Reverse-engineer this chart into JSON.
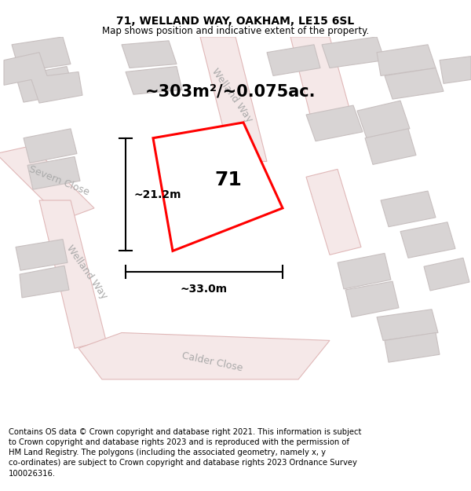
{
  "title": "71, WELLAND WAY, OAKHAM, LE15 6SL",
  "subtitle": "Map shows position and indicative extent of the property.",
  "footer": "Contains OS data © Crown copyright and database right 2021. This information is subject to Crown copyright and database rights 2023 and is reproduced with the permission of HM Land Registry. The polygons (including the associated geometry, namely x, y co-ordinates) are subject to Crown copyright and database rights 2023 Ordnance Survey 100026316.",
  "area_text": "~303m²/~0.075ac.",
  "plot_label": "71",
  "dim_width": "~33.0m",
  "dim_height": "~21.2m",
  "title_fontsize": 10,
  "subtitle_fontsize": 8.5,
  "footer_fontsize": 7.2,
  "area_fontsize": 15,
  "plot_label_fontsize": 18,
  "dim_fontsize": 10,
  "street_fontsize": 9,
  "figsize": [
    6.0,
    6.25
  ],
  "dpi": 100,
  "map_bg": "#f0eeee",
  "road_edge": "#e0b8b8",
  "road_fill": "#f5e8e8",
  "bld_edge": "#c8c0c0",
  "bld_fill": "#d8d4d4",
  "prop_edge": "#ff0000",
  "prop_fill": "#ffffff"
}
